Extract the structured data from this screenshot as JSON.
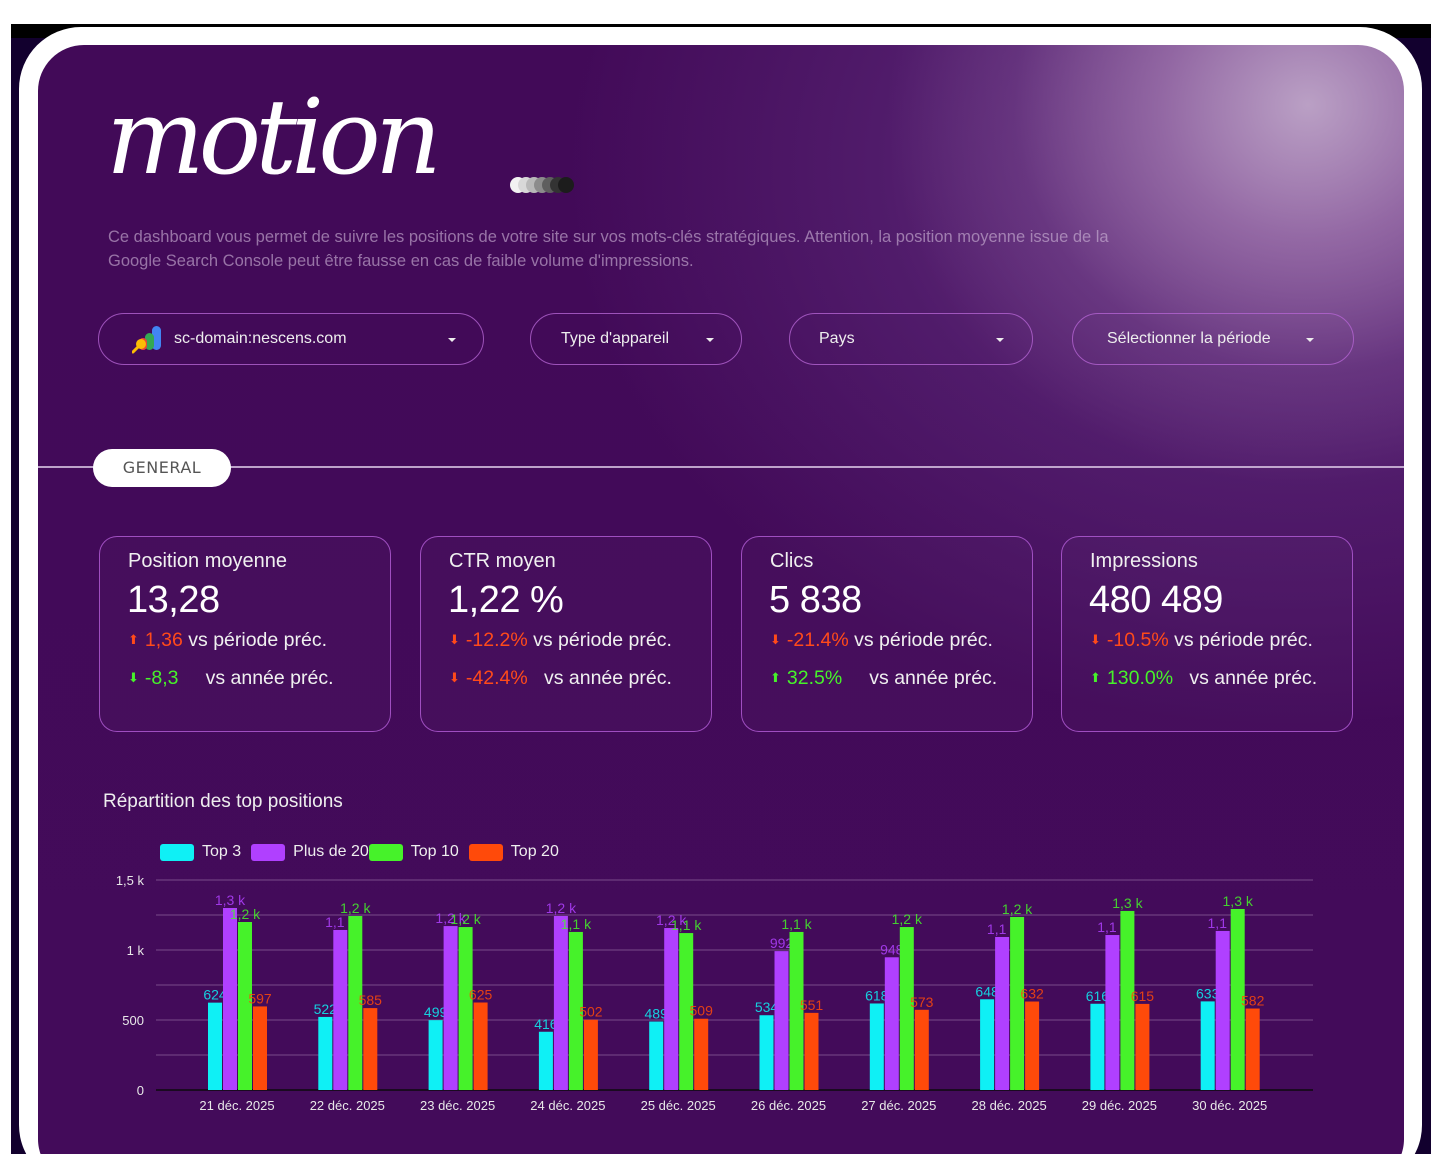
{
  "brand": {
    "logo_text": "motion"
  },
  "description": "Ce dashboard vous permet de suivre les positions de votre site sur vos mots-clés stratégiques. Attention, la position moyenne issue de la Google Search Console peut être fausse en cas de faible volume d'impressions.",
  "filters": {
    "property": {
      "value": "sc-domain:nescens.com",
      "icon": "google-search-console-icon"
    },
    "device": {
      "label": "Type d'appareil"
    },
    "country": {
      "label": "Pays"
    },
    "period": {
      "label": "Sélectionner la période"
    }
  },
  "section": {
    "label": "GENERAL"
  },
  "kpis": [
    {
      "title": "Position moyenne",
      "value": "13,28",
      "prev_period": {
        "delta": "1,36",
        "direction": "up",
        "tone": "negative",
        "suffix": "vs période préc."
      },
      "prev_year": {
        "delta": "-8,3",
        "direction": "down",
        "tone": "positive",
        "suffix": "vs année préc."
      }
    },
    {
      "title": "CTR moyen",
      "value": "1,22 %",
      "prev_period": {
        "delta": "-12.2%",
        "direction": "down",
        "tone": "negative",
        "suffix": "vs période préc."
      },
      "prev_year": {
        "delta": "-42.4%",
        "direction": "down",
        "tone": "negative",
        "suffix": "vs année préc."
      }
    },
    {
      "title": "Clics",
      "value": "5 838",
      "prev_period": {
        "delta": "-21.4%",
        "direction": "down",
        "tone": "negative",
        "suffix": "vs période préc."
      },
      "prev_year": {
        "delta": "32.5%",
        "direction": "up",
        "tone": "positive",
        "suffix": "vs année préc."
      }
    },
    {
      "title": "Impressions",
      "value": "480 489",
      "prev_period": {
        "delta": "-10.5%",
        "direction": "down",
        "tone": "negative",
        "suffix": "vs période préc."
      },
      "prev_year": {
        "delta": "130.0%",
        "direction": "up",
        "tone": "positive",
        "suffix": "vs année préc."
      }
    }
  ],
  "colors": {
    "negative": "#ff4a1a",
    "positive": "#46f22a",
    "panel_bg": "#420a58"
  },
  "chart_data": {
    "type": "bar",
    "title": "Répartition des top positions",
    "xlabel": "",
    "ylabel": "",
    "ylim": [
      0,
      1500
    ],
    "yticks": [
      0,
      500,
      1000,
      1500
    ],
    "ytick_labels": [
      "0",
      "500",
      "1 k",
      "1,5 k"
    ],
    "grid": true,
    "legend_position": "top-left",
    "categories": [
      "21 déc. 2025",
      "22 déc. 2025",
      "23 déc. 2025",
      "24 déc. 2025",
      "25 déc. 2025",
      "26 déc. 2025",
      "27 déc. 2025",
      "28 déc. 2025",
      "29 déc. 2025",
      "30 déc. 2025"
    ],
    "series": [
      {
        "name": "Top 3",
        "color": "#0ff0f5",
        "values": [
          624,
          522,
          499,
          416,
          489,
          534,
          618,
          648,
          616,
          633
        ],
        "labels": [
          "624",
          "522",
          "499",
          "416",
          "489",
          "534",
          "618",
          "648",
          "616",
          "633"
        ]
      },
      {
        "name": "Plus de 20",
        "color": "#b040ff",
        "values": [
          1300,
          1143,
          1171,
          1243,
          1157,
          992,
          948,
          1093,
          1107,
          1136
        ],
        "labels": [
          "1,3 k",
          "1,1 k",
          "1,2 k",
          "1,2 k",
          "1,2 k",
          "992",
          "948",
          "1,1 k",
          "1,1 k",
          "1,1 k"
        ]
      },
      {
        "name": "Top 10",
        "color": "#46f22a",
        "values": [
          1200,
          1243,
          1164,
          1129,
          1121,
          1129,
          1164,
          1236,
          1279,
          1293
        ],
        "labels": [
          "1,2 k",
          "1,2 k",
          "1,2 k",
          "1,1 k",
          "1,1 k",
          "1,1 k",
          "1,2 k",
          "1,2 k",
          "1,3 k",
          "1,3 k"
        ]
      },
      {
        "name": "Top 20",
        "color": "#ff4a0a",
        "values": [
          597,
          585,
          625,
          502,
          509,
          551,
          573,
          632,
          615,
          582
        ],
        "labels": [
          "597",
          "585",
          "625",
          "502",
          "509",
          "551",
          "573",
          "632",
          "615",
          "582"
        ]
      }
    ]
  }
}
